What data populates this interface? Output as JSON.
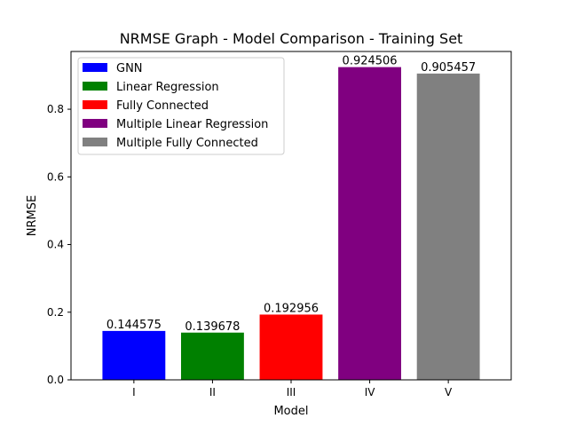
{
  "chart_data": {
    "type": "bar",
    "title": "NRMSE Graph - Model Comparison - Training Set",
    "xlabel": "Model",
    "ylabel": "NRMSE",
    "categories": [
      "I",
      "II",
      "III",
      "IV",
      "V"
    ],
    "values": [
      0.144575,
      0.139678,
      0.192956,
      0.924506,
      0.905457
    ],
    "value_labels": [
      "0.144575",
      "0.139678",
      "0.192956",
      "0.924506",
      "0.905457"
    ],
    "colors": [
      "#0000ff",
      "#008000",
      "#ff0000",
      "#800080",
      "#808080"
    ],
    "ylim": [
      0,
      0.9707
    ],
    "yticks": [
      0.0,
      0.2,
      0.4,
      0.6,
      0.8
    ],
    "ytick_labels": [
      "0.0",
      "0.2",
      "0.4",
      "0.6",
      "0.8"
    ],
    "grid": false,
    "legend_position": "top-left",
    "legend": [
      {
        "label": "GNN",
        "color": "#0000ff"
      },
      {
        "label": "Linear Regression",
        "color": "#008000"
      },
      {
        "label": "Fully Connected",
        "color": "#ff0000"
      },
      {
        "label": "Multiple Linear Regression",
        "color": "#800080"
      },
      {
        "label": "Multiple Fully Connected",
        "color": "#808080"
      }
    ]
  }
}
